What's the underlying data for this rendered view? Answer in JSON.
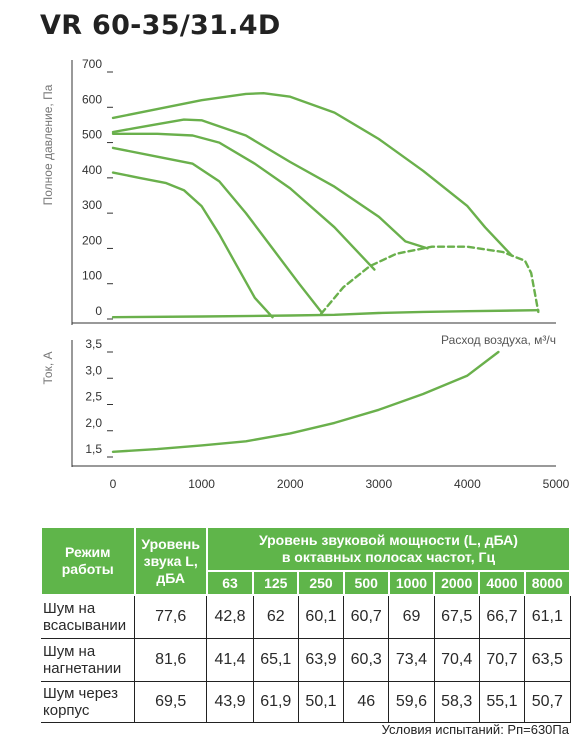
{
  "title": "VR 60-35/31.4D",
  "chart_data": [
    {
      "type": "line",
      "ylabel": "Полное давление, Па",
      "xlabel": "Расход воздуха, м³/ч",
      "xlim": [
        0,
        5000
      ],
      "ylim": [
        0,
        700
      ],
      "yticks": [
        "0",
        "100",
        "200",
        "300",
        "400",
        "500",
        "600",
        "700"
      ],
      "series": [
        {
          "values": [
            [
              0,
              570
            ],
            [
              500,
              595
            ],
            [
              1000,
              620
            ],
            [
              1500,
              638
            ],
            [
              1700,
              640
            ],
            [
              2000,
              630
            ],
            [
              2500,
              585
            ],
            [
              3000,
              510
            ],
            [
              3500,
              420
            ],
            [
              4000,
              320
            ],
            [
              4200,
              260
            ],
            [
              4500,
              180
            ]
          ]
        },
        {
          "values": [
            [
              0,
              530
            ],
            [
              500,
              552
            ],
            [
              800,
              565
            ],
            [
              1000,
              563
            ],
            [
              1500,
              520
            ],
            [
              2000,
              445
            ],
            [
              2500,
              375
            ],
            [
              3000,
              290
            ],
            [
              3300,
              220
            ],
            [
              3550,
              200
            ]
          ]
        },
        {
          "values": [
            [
              0,
              525
            ],
            [
              500,
              525
            ],
            [
              900,
              520
            ],
            [
              1200,
              500
            ],
            [
              1600,
              440
            ],
            [
              2000,
              370
            ],
            [
              2500,
              260
            ],
            [
              2950,
              140
            ]
          ]
        },
        {
          "values": [
            [
              0,
              485
            ],
            [
              500,
              460
            ],
            [
              900,
              440
            ],
            [
              1200,
              390
            ],
            [
              1500,
              300
            ],
            [
              1800,
              200
            ],
            [
              2100,
              100
            ],
            [
              2350,
              20
            ]
          ]
        },
        {
          "values": [
            [
              0,
              415
            ],
            [
              300,
              400
            ],
            [
              600,
              385
            ],
            [
              800,
              365
            ],
            [
              1000,
              320
            ],
            [
              1200,
              240
            ],
            [
              1400,
              150
            ],
            [
              1600,
              60
            ],
            [
              1800,
              5
            ]
          ]
        },
        {
          "values": [
            [
              0,
              5
            ],
            [
              1000,
              7
            ],
            [
              2000,
              10
            ],
            [
              2500,
              12
            ],
            [
              3000,
              17
            ],
            [
              3500,
              20
            ],
            [
              4000,
              22
            ],
            [
              4800,
              25
            ]
          ]
        },
        {
          "values": [
            [
              2350,
              15
            ],
            [
              2600,
              90
            ],
            [
              2900,
              150
            ],
            [
              3200,
              185
            ],
            [
              3600,
              205
            ],
            [
              4000,
              205
            ],
            [
              4400,
              190
            ],
            [
              4650,
              165
            ],
            [
              4720,
              130
            ],
            [
              4800,
              20
            ]
          ],
          "dashed": true
        }
      ]
    },
    {
      "type": "line",
      "ylabel": "Ток, А",
      "xlim": [
        0,
        5000
      ],
      "ylim": [
        1.5,
        3.5
      ],
      "yticks": [
        "1,5",
        "2,0",
        "2,5",
        "3,0",
        "3,5"
      ],
      "xticks": [
        "0",
        "1000",
        "2000",
        "3000",
        "4000",
        "5000"
      ],
      "series": [
        {
          "values": [
            [
              0,
              1.6
            ],
            [
              500,
              1.65
            ],
            [
              1000,
              1.72
            ],
            [
              1500,
              1.8
            ],
            [
              2000,
              1.95
            ],
            [
              2500,
              2.15
            ],
            [
              3000,
              2.4
            ],
            [
              3500,
              2.7
            ],
            [
              4000,
              3.05
            ],
            [
              4350,
              3.5
            ]
          ]
        }
      ]
    }
  ],
  "table": {
    "header": {
      "mode": "Режим работы",
      "sound_level": "Уровень звука L, дБА",
      "power_title_1": "Уровень звуковой мощности (L, дБА)",
      "power_title_2": "в октавных полосах частот, Гц",
      "freqs": [
        "63",
        "125",
        "250",
        "500",
        "1000",
        "2000",
        "4000",
        "8000"
      ]
    },
    "rows": [
      {
        "mode": "Шум на всасывании",
        "level": "77,6",
        "values": [
          "42,8",
          "62",
          "60,1",
          "60,7",
          "69",
          "67,5",
          "66,7",
          "61,1"
        ]
      },
      {
        "mode": "Шум на нагнетании",
        "level": "81,6",
        "values": [
          "41,4",
          "65,1",
          "63,9",
          "60,3",
          "73,4",
          "70,4",
          "70,7",
          "63,5"
        ]
      },
      {
        "mode": "Шум через корпус",
        "level": "69,5",
        "values": [
          "43,9",
          "61,9",
          "50,1",
          "46",
          "59,6",
          "58,3",
          "55,1",
          "50,7"
        ]
      }
    ]
  },
  "footnote": "Условия испытаний: Рп=630Па",
  "colors": {
    "curve": "#6ab04c",
    "header_bg": "#5fb54a"
  }
}
